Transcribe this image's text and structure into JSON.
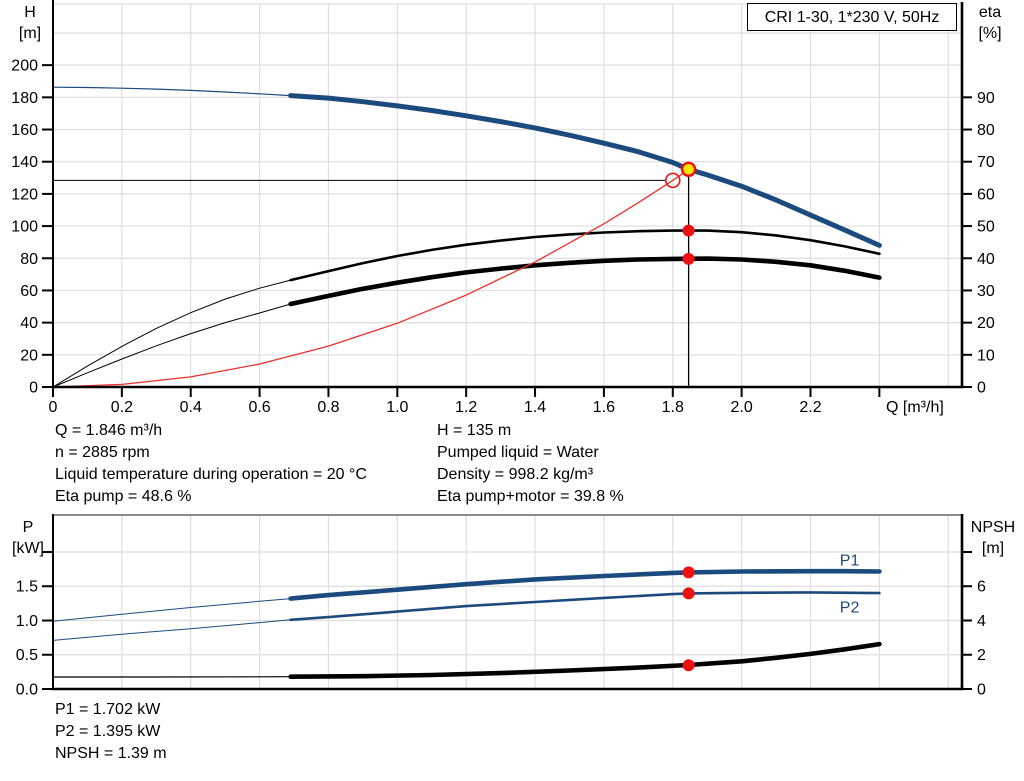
{
  "header": {
    "title": "CRI 1-30, 1*230 V, 50Hz"
  },
  "colors": {
    "curve_blue": "#1B4B7E",
    "curve_red": "#E8312D",
    "marker_red": "#EE1111",
    "marker_yellow": "#FFE400",
    "grid": "#DEDEDE",
    "frame_gray": "#8C8C8C",
    "axis_black": "#000000"
  },
  "axis_titles": {
    "top_left_1": "H",
    "top_left_2": "[m]",
    "top_right_1": "eta",
    "top_right_2": "[%]",
    "x_label": "Q [m³/h]",
    "bottom_left_1": "P",
    "bottom_left_2": "[kW]",
    "bottom_right_1": "NPSH",
    "bottom_right_2": "[m]"
  },
  "info_top_left": [
    "Q = 1.846 m³/h",
    "n = 2885 rpm",
    "Liquid temperature during operation = 20 °C",
    "Eta pump = 48.6 %"
  ],
  "info_top_right": [
    "H = 135 m",
    "Pumped liquid = Water",
    "Density = 998.2 kg/m³",
    "Eta pump+motor = 39.8 %"
  ],
  "info_bottom": [
    "P1 = 1.702 kW",
    "P2 = 1.395 kW",
    "NPSH = 1.39 m"
  ],
  "chart_data": [
    {
      "type": "line",
      "panel": "top",
      "title": "CRI 1-30, 1*230 V, 50Hz",
      "x": {
        "label": "Q [m³/h]",
        "min": 0,
        "max": 2.64,
        "grid_step": 0.2,
        "grid_max": 2.6,
        "ticks": [
          {
            "v": 0,
            "label": "0"
          },
          {
            "v": 0.2,
            "label": "0.2"
          },
          {
            "v": 0.4,
            "label": "0.4"
          },
          {
            "v": 0.6,
            "label": "0.6"
          },
          {
            "v": 0.8,
            "label": "0.8"
          },
          {
            "v": 1.0,
            "label": "1.0"
          },
          {
            "v": 1.2,
            "label": "1.2"
          },
          {
            "v": 1.4,
            "label": "1.4"
          },
          {
            "v": 1.6,
            "label": "1.6"
          },
          {
            "v": 1.8,
            "label": "1.8"
          },
          {
            "v": 2.0,
            "label": "2.0"
          },
          {
            "v": 2.2,
            "label": "2.2"
          },
          {
            "v": 2.4,
            "label": ""
          }
        ]
      },
      "y_left": {
        "label": "H [m]",
        "min": 0,
        "max": 238,
        "grid_step": 20,
        "grid_max": 220,
        "ticks": [
          {
            "v": 0,
            "label": "0"
          },
          {
            "v": 20,
            "label": "20"
          },
          {
            "v": 40,
            "label": "40"
          },
          {
            "v": 60,
            "label": "60"
          },
          {
            "v": 80,
            "label": "80"
          },
          {
            "v": 100,
            "label": "100"
          },
          {
            "v": 120,
            "label": "120"
          },
          {
            "v": 140,
            "label": "140"
          },
          {
            "v": 160,
            "label": "160"
          },
          {
            "v": 180,
            "label": "180"
          },
          {
            "v": 200,
            "label": "200"
          }
        ]
      },
      "y_right": {
        "label": "eta [%]",
        "min": 0,
        "max": 119,
        "ticks": [
          {
            "v": 0,
            "label": "0"
          },
          {
            "v": 10,
            "label": "10"
          },
          {
            "v": 20,
            "label": "20"
          },
          {
            "v": 30,
            "label": "30"
          },
          {
            "v": 40,
            "label": "40"
          },
          {
            "v": 50,
            "label": "50"
          },
          {
            "v": 60,
            "label": "60"
          },
          {
            "v": 70,
            "label": "70"
          },
          {
            "v": 80,
            "label": "80"
          },
          {
            "v": 90,
            "label": "90"
          }
        ]
      },
      "series": [
        {
          "name": "H-curve",
          "axis": "left",
          "color": "curve_blue",
          "thin_width": 1.2,
          "thick_width": 5,
          "thin_until": 0.69,
          "points": [
            [
              0,
              186.3
            ],
            [
              0.1,
              186.1
            ],
            [
              0.2,
              185.7
            ],
            [
              0.3,
              185.1
            ],
            [
              0.4,
              184.3
            ],
            [
              0.5,
              183.3
            ],
            [
              0.6,
              182.2
            ],
            [
              0.69,
              181.1
            ],
            [
              0.8,
              179.5
            ],
            [
              0.9,
              177.3
            ],
            [
              1.0,
              174.7
            ],
            [
              1.1,
              171.8
            ],
            [
              1.2,
              168.5
            ],
            [
              1.3,
              164.9
            ],
            [
              1.4,
              161.0
            ],
            [
              1.5,
              156.5
            ],
            [
              1.6,
              151.5
            ],
            [
              1.7,
              146.2
            ],
            [
              1.8,
              139.5
            ],
            [
              1.846,
              135.3
            ],
            [
              1.9,
              131.8
            ],
            [
              2.0,
              124.8
            ],
            [
              2.1,
              116.2
            ],
            [
              2.2,
              106.8
            ],
            [
              2.3,
              97.5
            ],
            [
              2.4,
              88.0
            ]
          ]
        },
        {
          "name": "eta-pump-curve",
          "axis": "right",
          "color": "axis_black",
          "thin_width": 1,
          "thick_width": 2.6,
          "thin_until": 0.69,
          "points": [
            [
              0,
              0
            ],
            [
              0.1,
              6.5
            ],
            [
              0.2,
              12.6
            ],
            [
              0.3,
              18.2
            ],
            [
              0.4,
              23.1
            ],
            [
              0.5,
              27.3
            ],
            [
              0.6,
              30.7
            ],
            [
              0.69,
              33.2
            ],
            [
              0.8,
              36.0
            ],
            [
              0.9,
              38.5
            ],
            [
              1.0,
              40.7
            ],
            [
              1.1,
              42.6
            ],
            [
              1.2,
              44.2
            ],
            [
              1.3,
              45.5
            ],
            [
              1.4,
              46.6
            ],
            [
              1.5,
              47.4
            ],
            [
              1.6,
              48.0
            ],
            [
              1.7,
              48.4
            ],
            [
              1.8,
              48.6
            ],
            [
              1.9,
              48.6
            ],
            [
              2.0,
              48.1
            ],
            [
              2.1,
              47.1
            ],
            [
              2.2,
              45.6
            ],
            [
              2.3,
              43.7
            ],
            [
              2.4,
              41.4
            ]
          ]
        },
        {
          "name": "eta-pump-motor-curve",
          "axis": "right",
          "color": "axis_black",
          "thin_width": 1,
          "thick_width": 4.6,
          "thin_until": 0.69,
          "points": [
            [
              0,
              0
            ],
            [
              0.1,
              4.4
            ],
            [
              0.2,
              8.7
            ],
            [
              0.3,
              12.8
            ],
            [
              0.4,
              16.6
            ],
            [
              0.5,
              20.0
            ],
            [
              0.6,
              23.0
            ],
            [
              0.69,
              25.8
            ],
            [
              0.8,
              28.3
            ],
            [
              0.9,
              30.5
            ],
            [
              1.0,
              32.4
            ],
            [
              1.1,
              34.1
            ],
            [
              1.2,
              35.6
            ],
            [
              1.3,
              36.8
            ],
            [
              1.4,
              37.8
            ],
            [
              1.5,
              38.6
            ],
            [
              1.6,
              39.2
            ],
            [
              1.7,
              39.6
            ],
            [
              1.8,
              39.8
            ],
            [
              1.9,
              39.9
            ],
            [
              2.0,
              39.6
            ],
            [
              2.1,
              38.9
            ],
            [
              2.2,
              37.8
            ],
            [
              2.3,
              36.1
            ],
            [
              2.4,
              34.0
            ]
          ]
        },
        {
          "name": "system-resistance-curve",
          "axis": "left",
          "color": "curve_red",
          "thin_width": 1.3,
          "thick_width": 1.3,
          "thin_until": 99,
          "points": [
            [
              0,
              0
            ],
            [
              0.2,
              1.6
            ],
            [
              0.4,
              6.3
            ],
            [
              0.6,
              14.3
            ],
            [
              0.8,
              25.4
            ],
            [
              1.0,
              39.6
            ],
            [
              1.2,
              57.1
            ],
            [
              1.4,
              77.7
            ],
            [
              1.6,
              101.4
            ],
            [
              1.7,
              114.5
            ],
            [
              1.8,
              128.4
            ],
            [
              1.846,
              135.1
            ]
          ]
        }
      ],
      "guide_lines": [
        {
          "type": "v",
          "q": 1.846,
          "from": 135.3,
          "to": 0,
          "axis": "left"
        },
        {
          "type": "h",
          "value": 128.4,
          "from_q": 0,
          "to_q": 1.779,
          "axis": "left"
        }
      ],
      "markers": [
        {
          "name": "duty-point",
          "q": 1.846,
          "value": 135.3,
          "axis": "left",
          "style": "yellow-dot"
        },
        {
          "name": "requested-duty-point",
          "q": 1.8,
          "value": 128.4,
          "axis": "left",
          "style": "open-circle"
        },
        {
          "name": "eta-pump-point",
          "q": 1.846,
          "value": 48.6,
          "axis": "right",
          "style": "red-dot"
        },
        {
          "name": "eta-pump-motor-point",
          "q": 1.846,
          "value": 39.8,
          "axis": "right",
          "style": "red-dot"
        }
      ],
      "series_labels": []
    },
    {
      "type": "line",
      "panel": "bottom",
      "x": {
        "min": 0,
        "max": 2.64,
        "grid_step": 0.2,
        "grid_max": 2.6,
        "ticks": []
      },
      "y_left": {
        "label": "P [kW]",
        "min": 0,
        "max": 2.54,
        "grid_step": 0.5,
        "grid_max": 2.0,
        "ticks": [
          {
            "v": 0,
            "label": "0.0"
          },
          {
            "v": 0.5,
            "label": "0.5"
          },
          {
            "v": 1.0,
            "label": "1.0"
          },
          {
            "v": 1.5,
            "label": "1.5"
          },
          {
            "v": 2.0,
            "label": ""
          }
        ]
      },
      "y_right": {
        "label": "NPSH [m]",
        "min": 0,
        "max": 10.16,
        "ticks": [
          {
            "v": 0,
            "label": "0"
          },
          {
            "v": 2,
            "label": "2"
          },
          {
            "v": 4,
            "label": "4"
          },
          {
            "v": 6,
            "label": "6"
          },
          {
            "v": 8,
            "label": ""
          }
        ]
      },
      "series": [
        {
          "name": "P1-curve",
          "axis": "left",
          "color": "curve_blue",
          "thin_width": 1,
          "thick_width": 4.6,
          "thin_until": 0.69,
          "points": [
            [
              0,
              0.99
            ],
            [
              0.2,
              1.09
            ],
            [
              0.4,
              1.19
            ],
            [
              0.6,
              1.28
            ],
            [
              0.69,
              1.32
            ],
            [
              0.8,
              1.37
            ],
            [
              1.0,
              1.45
            ],
            [
              1.2,
              1.53
            ],
            [
              1.4,
              1.6
            ],
            [
              1.6,
              1.65
            ],
            [
              1.8,
              1.695
            ],
            [
              1.846,
              1.702
            ],
            [
              2.0,
              1.715
            ],
            [
              2.2,
              1.72
            ],
            [
              2.3,
              1.72
            ],
            [
              2.4,
              1.715
            ]
          ]
        },
        {
          "name": "P2-curve",
          "axis": "left",
          "color": "curve_blue",
          "thin_width": 1,
          "thick_width": 2.6,
          "thin_until": 0.69,
          "points": [
            [
              0,
              0.71
            ],
            [
              0.2,
              0.8
            ],
            [
              0.4,
              0.88
            ],
            [
              0.6,
              0.97
            ],
            [
              0.69,
              1.01
            ],
            [
              0.8,
              1.05
            ],
            [
              1.0,
              1.13
            ],
            [
              1.2,
              1.21
            ],
            [
              1.4,
              1.27
            ],
            [
              1.6,
              1.33
            ],
            [
              1.8,
              1.385
            ],
            [
              1.846,
              1.395
            ],
            [
              2.0,
              1.405
            ],
            [
              2.2,
              1.41
            ],
            [
              2.4,
              1.4
            ]
          ]
        },
        {
          "name": "NPSH-curve",
          "axis": "right",
          "color": "axis_black",
          "thin_width": 1.2,
          "thick_width": 4.6,
          "thin_until": 0.69,
          "points": [
            [
              0,
              0.7
            ],
            [
              0.3,
              0.7
            ],
            [
              0.6,
              0.71
            ],
            [
              0.69,
              0.72
            ],
            [
              0.9,
              0.75
            ],
            [
              1.1,
              0.82
            ],
            [
              1.3,
              0.93
            ],
            [
              1.5,
              1.08
            ],
            [
              1.7,
              1.25
            ],
            [
              1.846,
              1.4
            ],
            [
              2.0,
              1.62
            ],
            [
              2.1,
              1.82
            ],
            [
              2.2,
              2.05
            ],
            [
              2.3,
              2.32
            ],
            [
              2.4,
              2.62
            ]
          ]
        }
      ],
      "guide_lines": [],
      "markers": [
        {
          "name": "p1-point",
          "q": 1.846,
          "value": 1.702,
          "axis": "left",
          "style": "red-dot"
        },
        {
          "name": "p2-point",
          "q": 1.846,
          "value": 1.395,
          "axis": "left",
          "style": "red-dot"
        },
        {
          "name": "npsh-point",
          "q": 1.846,
          "value": 1.39,
          "axis": "right",
          "style": "red-dot"
        }
      ],
      "series_labels": [
        {
          "text": "P1",
          "q": 2.285,
          "value": 1.8,
          "axis": "left"
        },
        {
          "text": "P2",
          "q": 2.285,
          "value": 1.12,
          "axis": "left"
        }
      ]
    }
  ]
}
